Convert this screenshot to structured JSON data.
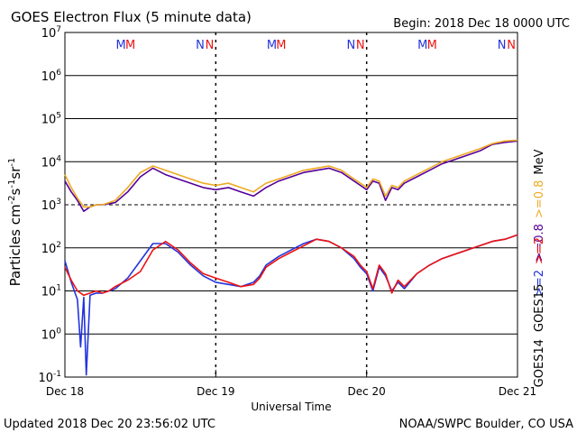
{
  "header": {
    "title": "GOES Electron Flux (5 minute data)",
    "begin": "Begin: 2018 Dec 18 0000 UTC"
  },
  "footer": {
    "updated": "Updated 2018 Dec 20 23:56:02 UTC",
    "credit": "NOAA/SWPC Boulder, CO USA"
  },
  "colors": {
    "goes14_low": "#2233dd",
    "goes15_low": "#ee1111",
    "goes14_high": "#550099",
    "goes15_high": "#eeaa22"
  },
  "chart_data": {
    "type": "line",
    "xlabel": "Universal Time",
    "ylabel_parts": {
      "main": "Particles cm",
      "e1": "-2",
      "mid1": "s",
      "e2": "-1",
      "mid2": "sr",
      "e3": "-1"
    },
    "yscale": "log",
    "ylim_exp": [
      -1,
      7
    ],
    "ytick_exponents": [
      "-1",
      "0",
      "1",
      "2",
      "3",
      "4",
      "5",
      "6",
      "7"
    ],
    "ytick_base": "10",
    "xlim_hours": [
      0,
      72
    ],
    "xticks": [
      {
        "hour": 0,
        "label": "Dec 18"
      },
      {
        "hour": 24,
        "label": "Dec 19"
      },
      {
        "hour": 48,
        "label": "Dec 20"
      },
      {
        "hour": 72,
        "label": "Dec 21"
      }
    ],
    "thresholds_exp": [
      3
    ],
    "markers": [
      {
        "hour": 10.0,
        "label": "M",
        "sat": "goes14"
      },
      {
        "hour": 11.5,
        "label": "M",
        "sat": "goes15"
      },
      {
        "hour": 22.5,
        "label": "N",
        "sat": "goes14"
      },
      {
        "hour": 24.0,
        "label": "N",
        "sat": "goes15"
      },
      {
        "hour": 34.0,
        "label": "M",
        "sat": "goes14"
      },
      {
        "hour": 35.5,
        "label": "M",
        "sat": "goes15"
      },
      {
        "hour": 46.5,
        "label": "N",
        "sat": "goes14"
      },
      {
        "hour": 48.0,
        "label": "N",
        "sat": "goes15"
      },
      {
        "hour": 58.0,
        "label": "M",
        "sat": "goes14"
      },
      {
        "hour": 59.5,
        "label": "M",
        "sat": "goes15"
      },
      {
        "hour": 70.5,
        "label": "N",
        "sat": "goes14"
      },
      {
        "hour": 72.0,
        "label": "N",
        "sat": "goes15"
      }
    ],
    "legend": {
      "placement": "right",
      "high": [
        {
          "text": ">=0.8",
          "color": "#550099"
        },
        {
          "text": ">=0.8",
          "color": "#eeaa22"
        },
        {
          "text": "MeV",
          "color": "#000000"
        }
      ],
      "low": [
        {
          "text": ">=2",
          "color": "#2233dd"
        },
        {
          "text": ">=2",
          "color": "#ee1111"
        },
        {
          "text": "MeV",
          "color": "#000000"
        }
      ],
      "satellites": [
        {
          "text": "GOES14",
          "color": "#000000"
        },
        {
          "text": "GOES15",
          "color": "#000000"
        }
      ]
    },
    "series": [
      {
        "name": "GOES14 >=0.8 MeV",
        "color": "#550099",
        "x": [
          0,
          1,
          2,
          3,
          4,
          5,
          6,
          8,
          10,
          12,
          14,
          16,
          18,
          20,
          22,
          24,
          26,
          28,
          30,
          31,
          32,
          34,
          36,
          38,
          40,
          42,
          44,
          46,
          47,
          48,
          49,
          50,
          51,
          52,
          53,
          54,
          56,
          58,
          60,
          62,
          64,
          66,
          68,
          70,
          72
        ],
        "y": [
          3.55,
          3.3,
          3.1,
          2.85,
          2.95,
          3.0,
          3.0,
          3.05,
          3.3,
          3.65,
          3.85,
          3.7,
          3.6,
          3.5,
          3.4,
          3.35,
          3.4,
          3.3,
          3.2,
          3.3,
          3.4,
          3.55,
          3.65,
          3.75,
          3.8,
          3.85,
          3.75,
          3.55,
          3.45,
          3.35,
          3.55,
          3.5,
          3.1,
          3.4,
          3.35,
          3.5,
          3.65,
          3.8,
          3.95,
          4.05,
          4.15,
          4.25,
          4.4,
          4.45,
          4.48
        ]
      },
      {
        "name": "GOES15 >=0.8 MeV",
        "color": "#eeaa22",
        "x": [
          0,
          1,
          2,
          3,
          4,
          5,
          6,
          8,
          10,
          12,
          14,
          16,
          18,
          20,
          22,
          24,
          26,
          28,
          30,
          31,
          32,
          34,
          36,
          38,
          40,
          42,
          44,
          46,
          47,
          48,
          49,
          50,
          51,
          52,
          53,
          54,
          56,
          58,
          60,
          62,
          64,
          66,
          68,
          70,
          72
        ],
        "y": [
          3.7,
          3.4,
          3.15,
          2.95,
          2.95,
          3.0,
          3.0,
          3.1,
          3.4,
          3.75,
          3.9,
          3.8,
          3.7,
          3.6,
          3.5,
          3.45,
          3.5,
          3.4,
          3.3,
          3.4,
          3.5,
          3.6,
          3.7,
          3.8,
          3.85,
          3.9,
          3.8,
          3.6,
          3.5,
          3.4,
          3.6,
          3.55,
          3.2,
          3.45,
          3.4,
          3.55,
          3.7,
          3.85,
          4.0,
          4.1,
          4.2,
          4.3,
          4.42,
          4.48,
          4.5
        ]
      },
      {
        "name": "GOES14 >=2 MeV",
        "color": "#2233dd",
        "x": [
          0,
          1,
          2,
          2.5,
          3,
          3.4,
          4,
          5,
          6,
          7,
          8,
          10,
          12,
          14,
          16,
          18,
          20,
          22,
          24,
          26,
          28,
          30,
          31,
          32,
          34,
          36,
          38,
          40,
          42,
          44,
          46,
          47,
          48,
          49,
          50,
          51,
          52,
          53,
          54,
          56,
          58,
          60,
          62,
          64,
          66,
          68,
          70,
          72
        ],
        "y": [
          1.7,
          1.2,
          0.8,
          -0.3,
          0.85,
          -0.95,
          0.9,
          0.95,
          0.95,
          1.0,
          1.05,
          1.3,
          1.7,
          2.1,
          2.1,
          1.9,
          1.6,
          1.35,
          1.2,
          1.15,
          1.1,
          1.2,
          1.35,
          1.6,
          1.8,
          1.95,
          2.1,
          2.2,
          2.15,
          2.0,
          1.75,
          1.55,
          1.4,
          1.0,
          1.55,
          1.35,
          1.0,
          1.2,
          1.05,
          1.4,
          1.6,
          1.75,
          1.85,
          1.95,
          2.05,
          2.15,
          2.2,
          2.3
        ]
      },
      {
        "name": "GOES15 >=2 MeV",
        "color": "#ee1111",
        "x": [
          0,
          1,
          2,
          3,
          4,
          5,
          6,
          7,
          8,
          10,
          12,
          14,
          16,
          18,
          20,
          22,
          24,
          26,
          28,
          30,
          31,
          32,
          34,
          36,
          38,
          40,
          42,
          44,
          46,
          47,
          48,
          49,
          50,
          51,
          52,
          53,
          54,
          56,
          58,
          60,
          62,
          64,
          66,
          68,
          70,
          72
        ],
        "y": [
          1.55,
          1.25,
          1.0,
          0.9,
          0.95,
          1.0,
          0.95,
          1.0,
          1.1,
          1.25,
          1.45,
          1.95,
          2.15,
          1.95,
          1.65,
          1.4,
          1.3,
          1.2,
          1.1,
          1.15,
          1.3,
          1.55,
          1.75,
          1.9,
          2.05,
          2.2,
          2.15,
          2.0,
          1.8,
          1.6,
          1.45,
          1.05,
          1.6,
          1.4,
          0.95,
          1.25,
          1.1,
          1.4,
          1.6,
          1.75,
          1.85,
          1.95,
          2.05,
          2.15,
          2.2,
          2.3
        ]
      }
    ]
  }
}
